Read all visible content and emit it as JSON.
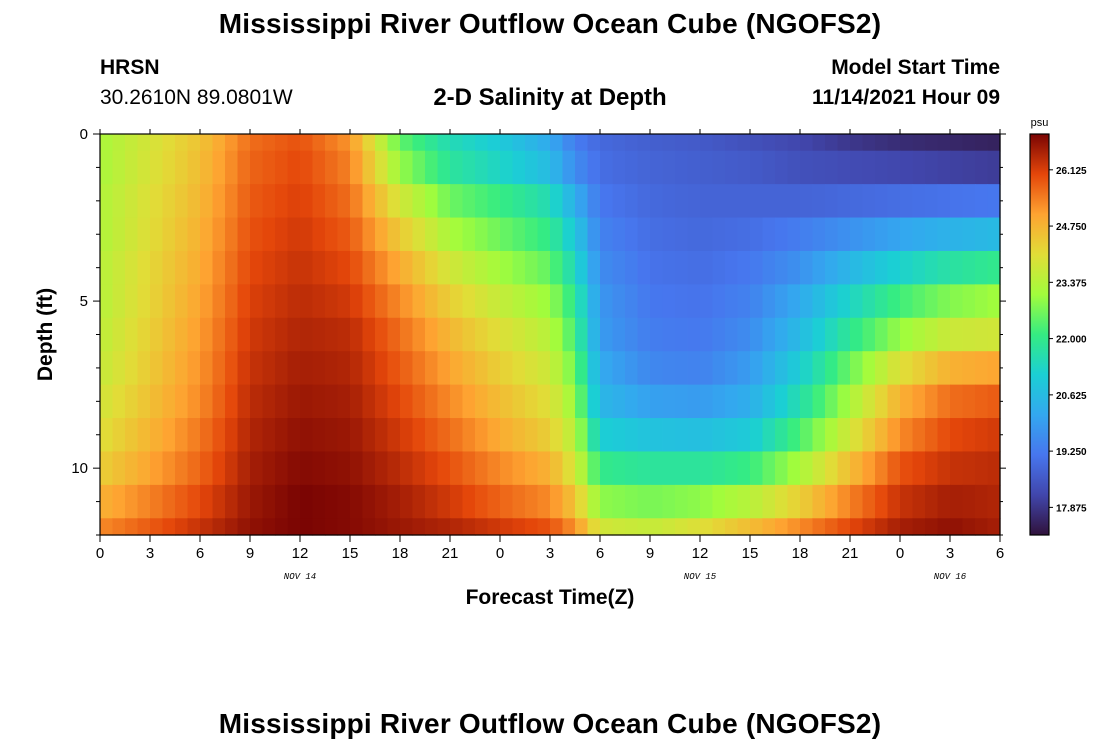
{
  "header": {
    "title": "Mississippi River Outflow Ocean Cube (NGOFS2)",
    "station": "HRSN",
    "coords": "30.2610N  89.0801W",
    "subtitle": "2-D Salinity at Depth",
    "start_label": "Model Start Time",
    "start_value": "11/14/2021 Hour 09"
  },
  "footer": {
    "title": "Mississippi River Outflow Ocean Cube (NGOFS2)"
  },
  "chart_data": {
    "type": "heatmap",
    "title": "2-D Salinity at Depth",
    "xlabel": "Forecast Time(Z)",
    "ylabel": "Depth (ft)",
    "x_unit": "hours since 11/14/2021 00Z",
    "xlim": [
      0,
      54
    ],
    "ylim": [
      12,
      0
    ],
    "x_ticks": [
      0,
      3,
      6,
      9,
      12,
      15,
      18,
      21,
      24,
      27,
      30,
      33,
      36,
      39,
      42,
      45,
      48,
      51,
      54
    ],
    "x_tick_labels": [
      "0",
      "3",
      "6",
      "9",
      "12",
      "15",
      "18",
      "21",
      "0",
      "3",
      "6",
      "9",
      "12",
      "15",
      "18",
      "21",
      "0",
      "3",
      "6"
    ],
    "day_labels": [
      {
        "x": 12,
        "label": "NOV 14"
      },
      {
        "x": 36,
        "label": "NOV 15"
      },
      {
        "x": 51,
        "label": "NOV 16"
      }
    ],
    "y_ticks": [
      0,
      5,
      10
    ],
    "y_tick_labels": [
      "0",
      "5",
      "10"
    ],
    "colorbar": {
      "unit": "psu",
      "min": 17.2,
      "max": 27.0,
      "ticks": [
        17.875,
        19.25,
        20.625,
        22.0,
        23.375,
        24.75,
        26.125
      ],
      "tick_labels": [
        "17.875",
        "19.250",
        "20.625",
        "22.000",
        "23.375",
        "24.750",
        "26.125"
      ]
    },
    "depth_layers": [
      0,
      1,
      2,
      3,
      4,
      5,
      6,
      7,
      8,
      9,
      10,
      11,
      12
    ],
    "time_grid": [
      0,
      6,
      9,
      12,
      15,
      18,
      21,
      24,
      27,
      28.5,
      30,
      33,
      36,
      39,
      42,
      45,
      48,
      51,
      54
    ],
    "salinity": [
      [
        23.2,
        24.5,
        25.6,
        25.9,
        25.2,
        22.5,
        21.5,
        21.0,
        20.2,
        19.3,
        18.9,
        18.7,
        18.6,
        18.4,
        18.2,
        17.9,
        17.7,
        17.6,
        17.5
      ],
      [
        23.2,
        24.6,
        25.7,
        26.0,
        25.4,
        23.0,
        21.8,
        21.3,
        20.6,
        19.6,
        19.0,
        18.8,
        18.7,
        18.6,
        18.4,
        18.3,
        18.2,
        18.1,
        18.0
      ],
      [
        23.3,
        24.7,
        25.8,
        26.1,
        25.6,
        23.8,
        22.6,
        22.1,
        21.5,
        20.3,
        19.2,
        18.9,
        18.8,
        18.8,
        18.8,
        18.9,
        19.0,
        19.1,
        19.2
      ],
      [
        23.3,
        24.8,
        25.9,
        26.2,
        25.8,
        24.4,
        23.2,
        22.6,
        22.0,
        20.9,
        19.4,
        19.0,
        18.9,
        19.0,
        19.3,
        19.7,
        20.1,
        20.4,
        20.6
      ],
      [
        23.4,
        24.9,
        26.0,
        26.3,
        26.0,
        24.9,
        23.8,
        23.1,
        22.5,
        21.4,
        19.6,
        19.1,
        19.0,
        19.2,
        19.7,
        20.5,
        21.2,
        21.7,
        22.0
      ],
      [
        23.4,
        25.0,
        26.1,
        26.4,
        26.2,
        25.3,
        24.3,
        23.6,
        23.0,
        21.9,
        19.8,
        19.2,
        19.1,
        19.4,
        20.2,
        21.3,
        22.2,
        22.8,
        23.1
      ],
      [
        23.5,
        25.1,
        26.2,
        26.5,
        26.4,
        25.6,
        24.7,
        24.0,
        23.4,
        22.2,
        19.9,
        19.3,
        19.2,
        19.6,
        20.6,
        21.9,
        23.0,
        23.7,
        23.8
      ],
      [
        23.6,
        25.2,
        26.3,
        26.6,
        26.5,
        25.8,
        25.0,
        24.3,
        23.7,
        22.6,
        20.2,
        19.5,
        19.4,
        19.9,
        21.1,
        22.6,
        24.0,
        24.8,
        25.0
      ],
      [
        23.8,
        25.3,
        26.4,
        26.7,
        26.6,
        26.0,
        25.3,
        24.6,
        24.0,
        23.0,
        20.5,
        20.0,
        19.9,
        20.3,
        21.6,
        23.2,
        24.8,
        25.6,
        25.8
      ],
      [
        24.0,
        25.5,
        26.5,
        26.8,
        26.7,
        26.2,
        25.6,
        24.9,
        24.3,
        23.4,
        21.1,
        20.8,
        20.7,
        21.0,
        22.3,
        23.8,
        25.3,
        26.0,
        26.2
      ],
      [
        24.3,
        25.7,
        26.6,
        26.9,
        26.8,
        26.4,
        25.9,
        25.3,
        24.8,
        23.8,
        22.0,
        21.8,
        21.8,
        22.1,
        23.2,
        24.6,
        25.9,
        26.3,
        26.4
      ],
      [
        24.8,
        26.0,
        26.7,
        27.0,
        26.9,
        26.6,
        26.2,
        25.7,
        25.3,
        24.5,
        22.9,
        22.7,
        22.9,
        23.4,
        24.3,
        25.4,
        26.3,
        26.6,
        26.5
      ],
      [
        25.3,
        26.3,
        26.8,
        27.0,
        26.9,
        26.7,
        26.5,
        26.2,
        25.9,
        25.2,
        23.8,
        23.6,
        24.0,
        24.6,
        25.3,
        26.0,
        26.6,
        26.8,
        26.6
      ]
    ]
  }
}
